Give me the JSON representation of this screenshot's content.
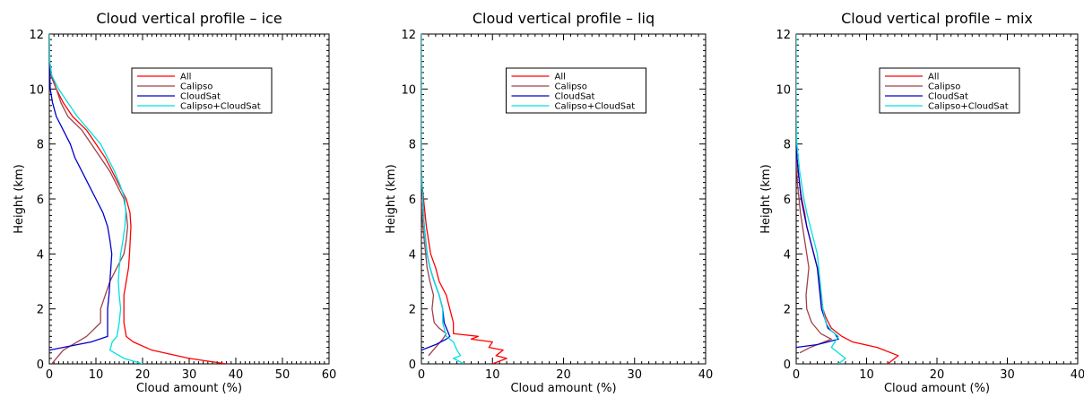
{
  "chart_data": [
    {
      "type": "line",
      "title": "Cloud vertical profile – ice",
      "xlabel": "Cloud amount (%)",
      "ylabel": "Height (km)",
      "xlim": [
        0,
        60
      ],
      "ylim": [
        0,
        12
      ],
      "xticks": [
        0,
        10,
        20,
        30,
        40,
        50,
        60
      ],
      "yticks": [
        0,
        2,
        4,
        6,
        8,
        10,
        12
      ],
      "legend_position": "top-center",
      "series": [
        {
          "name": "All",
          "color": "#ff0000",
          "points": [
            [
              38,
              0.0
            ],
            [
              30,
              0.2
            ],
            [
              22,
              0.5
            ],
            [
              18,
              0.8
            ],
            [
              16.5,
              1.0
            ],
            [
              16,
              1.5
            ],
            [
              16,
              2.5
            ],
            [
              16.5,
              3.0
            ],
            [
              17,
              3.5
            ],
            [
              17.2,
              4.0
            ],
            [
              17.5,
              5.0
            ],
            [
              17.3,
              5.5
            ],
            [
              16.5,
              6.0
            ],
            [
              15,
              6.5
            ],
            [
              13.5,
              7.0
            ],
            [
              12,
              7.5
            ],
            [
              10,
              8.0
            ],
            [
              8,
              8.5
            ],
            [
              5,
              9.0
            ],
            [
              3,
              9.5
            ],
            [
              1.5,
              10.0
            ],
            [
              0.5,
              10.5
            ],
            [
              0.1,
              11.0
            ],
            [
              0,
              11.5
            ]
          ]
        },
        {
          "name": "Calipso",
          "color": "#a0404a",
          "points": [
            [
              0.5,
              0.0
            ],
            [
              3,
              0.5
            ],
            [
              8,
              1.0
            ],
            [
              11,
              1.5
            ],
            [
              11,
              2.0
            ],
            [
              12,
              2.5
            ],
            [
              13,
              3.0
            ],
            [
              14.5,
              3.5
            ],
            [
              16,
              4.0
            ],
            [
              16.5,
              4.5
            ],
            [
              16.8,
              5.0
            ],
            [
              16.5,
              5.5
            ],
            [
              16,
              6.0
            ],
            [
              14.5,
              6.5
            ],
            [
              13,
              7.0
            ],
            [
              11,
              7.5
            ],
            [
              9,
              8.0
            ],
            [
              7,
              8.5
            ],
            [
              4,
              9.0
            ],
            [
              2.5,
              9.5
            ],
            [
              1.5,
              10.0
            ],
            [
              0.3,
              10.5
            ],
            [
              0,
              11.0
            ]
          ]
        },
        {
          "name": "CloudSat",
          "color": "#0000cc",
          "points": [
            [
              0,
              0.5
            ],
            [
              3,
              0.6
            ],
            [
              9,
              0.8
            ],
            [
              12.5,
              1.0
            ],
            [
              12.5,
              1.5
            ],
            [
              12.5,
              2.0
            ],
            [
              12.8,
              2.5
            ],
            [
              13,
              3.0
            ],
            [
              13.2,
              3.5
            ],
            [
              13.4,
              4.0
            ],
            [
              13,
              4.5
            ],
            [
              12.5,
              5.0
            ],
            [
              11.5,
              5.5
            ],
            [
              10,
              6.0
            ],
            [
              8.5,
              6.5
            ],
            [
              7,
              7.0
            ],
            [
              5.5,
              7.5
            ],
            [
              4.5,
              8.0
            ],
            [
              3,
              8.5
            ],
            [
              1.5,
              9.0
            ],
            [
              0.7,
              9.5
            ],
            [
              0.2,
              10.0
            ],
            [
              0.1,
              10.5
            ],
            [
              0,
              11.0
            ]
          ]
        },
        {
          "name": "Calipso+CloudSat",
          "color": "#00e0e0",
          "points": [
            [
              20,
              0.0
            ],
            [
              16,
              0.2
            ],
            [
              13,
              0.5
            ],
            [
              13.5,
              0.8
            ],
            [
              14.5,
              1.0
            ],
            [
              15,
              1.5
            ],
            [
              15.3,
              2.0
            ],
            [
              15,
              2.5
            ],
            [
              14.8,
              3.0
            ],
            [
              15,
              3.5
            ],
            [
              15.3,
              4.0
            ],
            [
              15.8,
              4.5
            ],
            [
              16.2,
              5.0
            ],
            [
              16.4,
              5.5
            ],
            [
              16.2,
              6.0
            ],
            [
              15.2,
              6.5
            ],
            [
              14,
              7.0
            ],
            [
              12.5,
              7.5
            ],
            [
              11,
              8.0
            ],
            [
              8.5,
              8.5
            ],
            [
              6,
              9.0
            ],
            [
              4,
              9.5
            ],
            [
              2,
              10.0
            ],
            [
              0.5,
              10.5
            ],
            [
              0.1,
              11.0
            ],
            [
              0,
              12.0
            ]
          ]
        }
      ]
    },
    {
      "type": "line",
      "title": "Cloud vertical profile – liq",
      "xlabel": "Cloud amount (%)",
      "ylabel": "Height (km)",
      "xlim": [
        0,
        40
      ],
      "ylim": [
        0,
        12
      ],
      "xticks": [
        0,
        10,
        20,
        30,
        40
      ],
      "yticks": [
        0,
        2,
        4,
        6,
        8,
        10,
        12
      ],
      "legend_position": "top-center",
      "series": [
        {
          "name": "All",
          "color": "#ff0000",
          "points": [
            [
              10,
              0.0
            ],
            [
              12,
              0.2
            ],
            [
              10.5,
              0.3
            ],
            [
              11.5,
              0.5
            ],
            [
              9.5,
              0.6
            ],
            [
              10,
              0.8
            ],
            [
              7,
              0.9
            ],
            [
              8,
              1.0
            ],
            [
              4.5,
              1.1
            ],
            [
              4.5,
              1.5
            ],
            [
              4,
              2.0
            ],
            [
              3.5,
              2.5
            ],
            [
              2.5,
              3.0
            ],
            [
              2,
              3.5
            ],
            [
              1.3,
              4.0
            ],
            [
              1,
              4.5
            ],
            [
              0.7,
              5.0
            ],
            [
              0.5,
              5.5
            ],
            [
              0.3,
              6.0
            ],
            [
              0.1,
              6.5
            ],
            [
              0,
              7.0
            ]
          ]
        },
        {
          "name": "Calipso",
          "color": "#a0404a",
          "points": [
            [
              1,
              0.3
            ],
            [
              2,
              0.6
            ],
            [
              3,
              0.9
            ],
            [
              3.5,
              1.1
            ],
            [
              2.5,
              1.3
            ],
            [
              1.8,
              1.5
            ],
            [
              1.5,
              2.0
            ],
            [
              1.7,
              2.5
            ],
            [
              1.2,
              3.0
            ],
            [
              0.8,
              3.5
            ],
            [
              0.6,
              4.0
            ],
            [
              0.4,
              4.5
            ],
            [
              0.2,
              5.0
            ],
            [
              0.1,
              5.5
            ],
            [
              0,
              6.0
            ]
          ]
        },
        {
          "name": "CloudSat",
          "color": "#0000cc",
          "points": [
            [
              0,
              0.5
            ],
            [
              2,
              0.7
            ],
            [
              3.5,
              0.9
            ],
            [
              4,
              1.0
            ],
            [
              3.2,
              1.5
            ],
            [
              3,
              2.0
            ],
            [
              2.5,
              2.5
            ],
            [
              1.8,
              3.0
            ],
            [
              1.2,
              3.5
            ],
            [
              0.8,
              4.0
            ],
            [
              0.6,
              4.5
            ],
            [
              0.4,
              5.0
            ],
            [
              0.3,
              5.5
            ],
            [
              0.2,
              6.0
            ],
            [
              0.1,
              6.5
            ],
            [
              0,
              7.0
            ]
          ]
        },
        {
          "name": "Calipso+CloudSat",
          "color": "#00e0e0",
          "points": [
            [
              0,
              12.0
            ],
            [
              0,
              11.0
            ],
            [
              0,
              10.0
            ],
            [
              0,
              9.0
            ],
            [
              0,
              8.0
            ],
            [
              0,
              7.0
            ],
            [
              0.1,
              6.5
            ],
            [
              0.2,
              6.0
            ],
            [
              0.3,
              5.5
            ],
            [
              0.4,
              5.0
            ],
            [
              0.6,
              4.5
            ],
            [
              0.8,
              4.0
            ],
            [
              1.2,
              3.5
            ],
            [
              1.8,
              3.0
            ],
            [
              2.5,
              2.5
            ],
            [
              3,
              2.0
            ],
            [
              3,
              1.5
            ],
            [
              3.5,
              1.0
            ],
            [
              4.5,
              0.8
            ],
            [
              5,
              0.5
            ],
            [
              5.5,
              0.3
            ],
            [
              4.5,
              0.2
            ],
            [
              6,
              0.0
            ]
          ]
        }
      ]
    },
    {
      "type": "line",
      "title": "Cloud vertical profile – mix",
      "xlabel": "Cloud amount (%)",
      "ylabel": "Height (km)",
      "xlim": [
        0,
        40
      ],
      "ylim": [
        0,
        12
      ],
      "xticks": [
        0,
        10,
        20,
        30,
        40
      ],
      "yticks": [
        0,
        2,
        4,
        6,
        8,
        10,
        12
      ],
      "legend_position": "top-center",
      "series": [
        {
          "name": "All",
          "color": "#ff0000",
          "points": [
            [
              13,
              0.0
            ],
            [
              14.5,
              0.3
            ],
            [
              11.5,
              0.6
            ],
            [
              8,
              0.8
            ],
            [
              6.5,
              1.0
            ],
            [
              5,
              1.3
            ],
            [
              4.2,
              1.7
            ],
            [
              3.8,
              2.0
            ],
            [
              3.5,
              2.5
            ],
            [
              3.3,
              3.0
            ],
            [
              3,
              3.5
            ],
            [
              2.5,
              4.0
            ],
            [
              2,
              4.5
            ],
            [
              1.5,
              5.0
            ],
            [
              1.2,
              5.5
            ],
            [
              0.8,
              6.0
            ],
            [
              0.5,
              6.5
            ],
            [
              0.3,
              7.0
            ],
            [
              0.1,
              7.5
            ],
            [
              0,
              8.0
            ]
          ]
        },
        {
          "name": "Calipso",
          "color": "#a0404a",
          "points": [
            [
              0.5,
              0.4
            ],
            [
              2,
              0.6
            ],
            [
              5,
              0.9
            ],
            [
              3.5,
              1.1
            ],
            [
              2.2,
              1.5
            ],
            [
              1.5,
              2.0
            ],
            [
              1.4,
              2.5
            ],
            [
              1.6,
              3.0
            ],
            [
              1.8,
              3.5
            ],
            [
              1.5,
              4.0
            ],
            [
              1.2,
              4.5
            ],
            [
              0.9,
              5.0
            ],
            [
              0.6,
              5.5
            ],
            [
              0.4,
              6.0
            ],
            [
              0.2,
              6.5
            ],
            [
              0.1,
              7.0
            ],
            [
              0,
              7.5
            ]
          ]
        },
        {
          "name": "CloudSat",
          "color": "#0000cc",
          "points": [
            [
              0,
              0.6
            ],
            [
              3,
              0.7
            ],
            [
              6,
              0.9
            ],
            [
              5.5,
              1.1
            ],
            [
              4.5,
              1.3
            ],
            [
              4,
              1.7
            ],
            [
              3.6,
              2.0
            ],
            [
              3.4,
              2.5
            ],
            [
              3.2,
              3.0
            ],
            [
              3,
              3.5
            ],
            [
              2.5,
              4.0
            ],
            [
              2,
              4.5
            ],
            [
              1.5,
              5.0
            ],
            [
              1.1,
              5.5
            ],
            [
              0.7,
              6.0
            ],
            [
              0.5,
              6.5
            ],
            [
              0.3,
              7.0
            ],
            [
              0.1,
              7.5
            ],
            [
              0,
              8.0
            ]
          ]
        },
        {
          "name": "Calipso+CloudSat",
          "color": "#00e0e0",
          "points": [
            [
              0,
              12.0
            ],
            [
              0,
              11.0
            ],
            [
              0,
              10.0
            ],
            [
              0,
              9.0
            ],
            [
              0.1,
              8.0
            ],
            [
              0.3,
              7.5
            ],
            [
              0.5,
              7.0
            ],
            [
              0.8,
              6.5
            ],
            [
              1.1,
              6.0
            ],
            [
              1.5,
              5.5
            ],
            [
              2,
              5.0
            ],
            [
              2.5,
              4.5
            ],
            [
              3,
              4.0
            ],
            [
              3.2,
              3.5
            ],
            [
              3.4,
              3.0
            ],
            [
              3.6,
              2.5
            ],
            [
              3.8,
              2.0
            ],
            [
              4.2,
              1.5
            ],
            [
              5,
              1.2
            ],
            [
              6,
              1.0
            ],
            [
              5.5,
              0.8
            ],
            [
              5,
              0.6
            ],
            [
              6,
              0.4
            ],
            [
              7,
              0.2
            ],
            [
              6,
              0.0
            ]
          ]
        }
      ]
    }
  ]
}
